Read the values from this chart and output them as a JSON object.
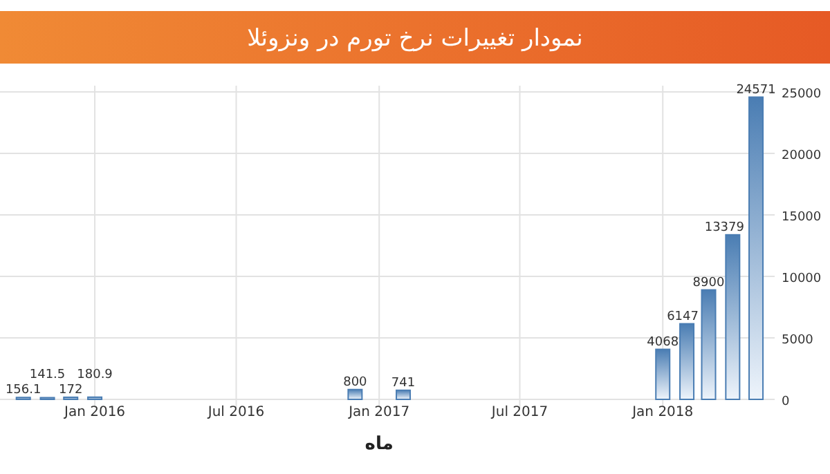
{
  "chart_data": {
    "type": "bar",
    "title": "نمودار تغییرات نرخ تورم در ونزوئلا",
    "xlabel": "ماه",
    "x": [
      "2015-10",
      "2015-11",
      "2015-12",
      "2016-01",
      "2016-12",
      "2017-02",
      "2018-01",
      "2018-02",
      "2018-03",
      "2018-04",
      "2018-05"
    ],
    "values": [
      156.1,
      141.5,
      172,
      180.9,
      800,
      741,
      4068,
      6147,
      8900,
      13379,
      24571
    ],
    "color": "#4a7db3",
    "data_labels": true,
    "grid": true,
    "xlim": [
      "2015-09-01",
      "2018-05-25"
    ],
    "xticks": [
      {
        "value": "2016-01-01",
        "label": "Jan 2016"
      },
      {
        "value": "2016-07-01",
        "label": "Jul 2016"
      },
      {
        "value": "2017-01-01",
        "label": "Jan 2017"
      },
      {
        "value": "2017-07-01",
        "label": "Jul 2017"
      },
      {
        "value": "2018-01-01",
        "label": "Jan 2018"
      }
    ],
    "ylim": [
      0,
      25500
    ],
    "yticks": [
      0,
      5000,
      10000,
      15000,
      20000,
      25000
    ]
  }
}
